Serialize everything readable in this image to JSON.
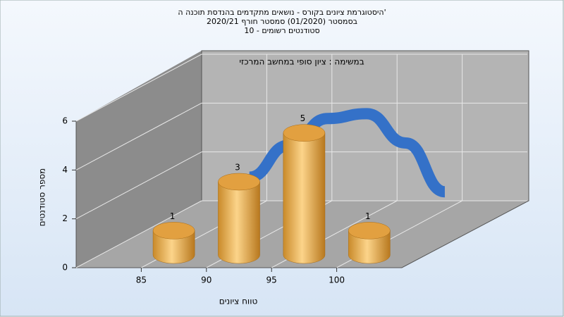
{
  "chart_data": {
    "type": "histogram",
    "title": [
      "היסטוגרמת ציונים בקורס - נושאים מתקדמים בהנדסת תוכנה ה'",
      "בסמסטר  (01/2020)  סמסטר חורף 2020/21",
      "סטודנטים רשומים - 10"
    ],
    "annotation": "במשימה : ציון סופי במחשב המרכזי",
    "x_label": "טווח ציונים",
    "y_label": "מספר סטודנטים",
    "bins": [
      85,
      90,
      95,
      100,
      105
    ],
    "values": [
      1,
      3,
      5,
      1
    ],
    "color": "#e8a33a",
    "fit": {
      "color": "#3471c8",
      "x": [
        88,
        91,
        94,
        97,
        100,
        103
      ],
      "values": [
        2.2,
        3.5,
        4.6,
        4.8,
        3.6,
        1.6
      ]
    },
    "xlim": [
      80,
      105
    ],
    "xticks": [
      85,
      90,
      95,
      100
    ],
    "ylim": [
      0,
      6
    ],
    "yticks": [
      0,
      2,
      4,
      6
    ],
    "grid": true
  }
}
